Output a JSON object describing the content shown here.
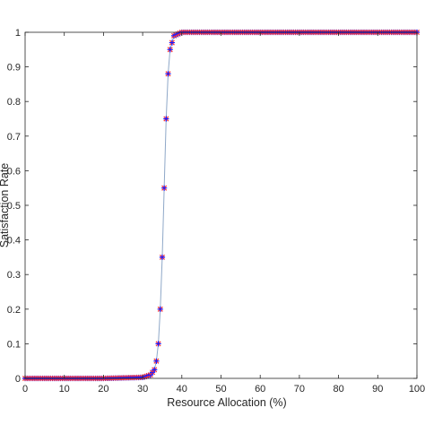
{
  "chart_data": {
    "type": "line",
    "title": "",
    "xlabel": "Resource Allocation  (%)",
    "ylabel": "Satisfaction Rate",
    "xlim": [
      0,
      100
    ],
    "ylim": [
      0,
      1
    ],
    "xticks": [
      "0",
      "10",
      "20",
      "30",
      "40",
      "50",
      "60",
      "70",
      "80",
      "90",
      "100"
    ],
    "yticks": [
      "0",
      "0.1",
      "0.2",
      "0.3",
      "0.4",
      "0.5",
      "0.6",
      "0.7",
      "0.8",
      "0.9",
      "1"
    ],
    "grid": false,
    "legend": "none",
    "series": [
      {
        "line_color": "#8fa8c8",
        "marker_colors": [
          "#1a1aff",
          "#ff3333"
        ],
        "marker": "star",
        "x_start": 0,
        "x_end": 100,
        "x_step": 0.5,
        "x": [
          0,
          10,
          20,
          30,
          32,
          33,
          33.5,
          34,
          34.5,
          35,
          35.5,
          36,
          36.5,
          37,
          38,
          40,
          50,
          60,
          70,
          80,
          90,
          100
        ],
        "y": [
          0,
          0,
          0,
          0.003,
          0.01,
          0.025,
          0.05,
          0.1,
          0.2,
          0.35,
          0.55,
          0.75,
          0.88,
          0.95,
          0.99,
          1,
          1,
          1,
          1,
          1,
          1,
          1
        ]
      }
    ]
  }
}
